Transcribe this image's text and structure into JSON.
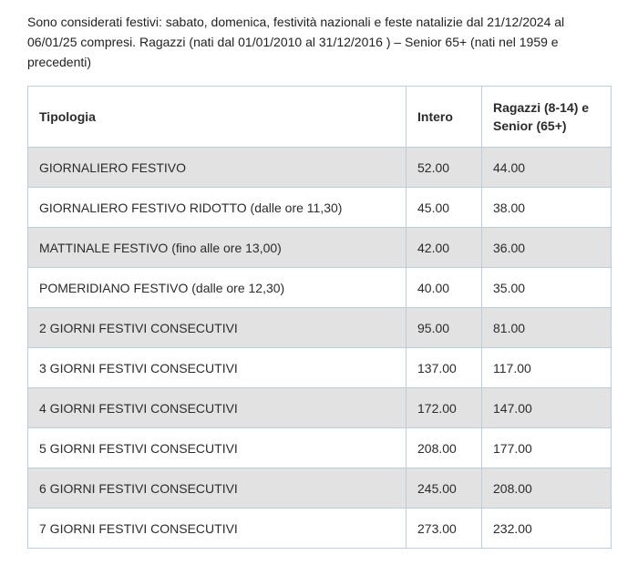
{
  "intro": {
    "text": "Sono considerati festivi: sabato, domenica, festività nazionali e feste natalizie dal 21/12/2024 al 06/01/25 compresi. Ragazzi (nati dal 01/01/2010 al 31/12/2016 ) – Senior 65+ (nati nel 1959 e precedenti)"
  },
  "table": {
    "columns": [
      "Tipologia",
      "Intero",
      "Ragazzi (8-14) e Senior (65+)"
    ],
    "rows": [
      {
        "tipologia": "GIORNALIERO FESTIVO",
        "intero": "52.00",
        "ragazzi": "44.00"
      },
      {
        "tipologia": "GIORNALIERO FESTIVO RIDOTTO (dalle ore 11,30)",
        "intero": "45.00",
        "ragazzi": "38.00"
      },
      {
        "tipologia": "MATTINALE FESTIVO (fino alle ore 13,00)",
        "intero": "42.00",
        "ragazzi": "36.00"
      },
      {
        "tipologia": "POMERIDIANO FESTIVO (dalle ore 12,30)",
        "intero": "40.00",
        "ragazzi": "35.00"
      },
      {
        "tipologia": "2 GIORNI FESTIVI CONSECUTIVI",
        "intero": "95.00",
        "ragazzi": "81.00"
      },
      {
        "tipologia": "3 GIORNI FESTIVI CONSECUTIVI",
        "intero": "137.00",
        "ragazzi": "117.00"
      },
      {
        "tipologia": "4 GIORNI FESTIVI CONSECUTIVI",
        "intero": "172.00",
        "ragazzi": "147.00"
      },
      {
        "tipologia": "5 GIORNI FESTIVI CONSECUTIVI",
        "intero": "208.00",
        "ragazzi": "177.00"
      },
      {
        "tipologia": "6 GIORNI FESTIVI CONSECUTIVI",
        "intero": "245.00",
        "ragazzi": "208.00"
      },
      {
        "tipologia": "7 GIORNI FESTIVI CONSECUTIVI",
        "intero": "273.00",
        "ragazzi": "232.00"
      }
    ]
  },
  "colors": {
    "table_border": "#b9cfdd",
    "row_alternate_background": "#e2e2e2",
    "text": "#2b2b2b"
  }
}
